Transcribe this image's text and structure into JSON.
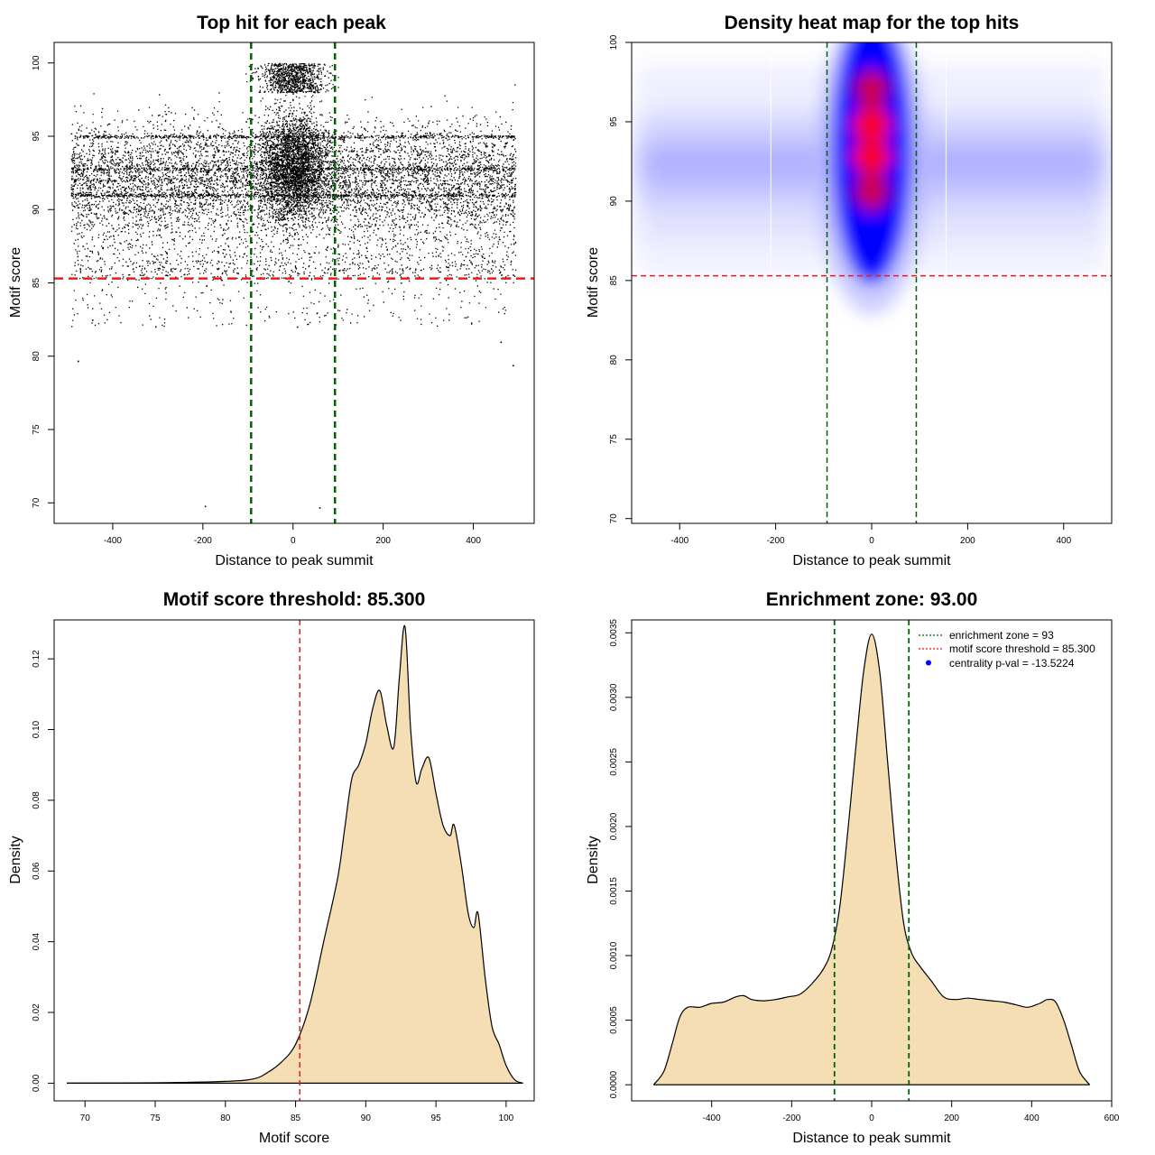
{
  "chart_data": [
    {
      "type": "scatter",
      "title": "Top hit for each peak",
      "xlabel": "Distance to peak summit",
      "ylabel": "Motif score",
      "xlim": [
        -530,
        535
      ],
      "ylim": [
        68.6,
        101.4
      ],
      "xticks": [
        -400,
        -200,
        0,
        200,
        400
      ],
      "yticks": [
        70,
        75,
        80,
        85,
        90,
        95,
        100
      ],
      "vlines": [
        -93,
        93
      ],
      "hline": 85.3,
      "point_density": {
        "x_range": [
          -493,
          493
        ],
        "score_peaks": [
          91,
          92.8,
          95
        ],
        "central_concentration_half_width": 93
      },
      "outliers": [
        {
          "x": -196,
          "y": 69.8
        },
        {
          "x": 58,
          "y": 69.7
        },
        {
          "x": -478,
          "y": 79.7
        },
        {
          "x": 487,
          "y": 79.4
        },
        {
          "x": 460,
          "y": 81.0
        }
      ]
    },
    {
      "type": "heatmap",
      "title": "Density heat map for the top hits",
      "xlabel": "Distance to peak summit",
      "ylabel": "Motif score",
      "xlim": [
        -500,
        500
      ],
      "ylim": [
        69.7,
        100
      ],
      "xticks": [
        -400,
        -200,
        0,
        200,
        400
      ],
      "yticks": [
        70,
        75,
        80,
        85,
        90,
        95,
        100
      ],
      "vlines": [
        -93,
        93
      ],
      "hline": 85.3,
      "hotspots": [
        {
          "x": 0,
          "y": 92.8,
          "level": "high"
        },
        {
          "x": 0,
          "y": 94.8,
          "level": "high"
        },
        {
          "x": 0,
          "y": 97.2,
          "level": "medium"
        },
        {
          "x": 0,
          "y": 90.5,
          "level": "medium"
        }
      ],
      "colors": [
        "#ffffff",
        "#0000ff",
        "#ff0000"
      ]
    },
    {
      "type": "area",
      "title": "Motif score threshold: 85.300",
      "xlabel": "Motif score",
      "ylabel": "Density",
      "xlim": [
        67.8,
        102.0
      ],
      "ylim": [
        -0.005,
        0.131
      ],
      "xticks": [
        70,
        75,
        80,
        85,
        90,
        95,
        100
      ],
      "yticks": [
        0.0,
        0.02,
        0.04,
        0.06,
        0.08,
        0.1,
        0.12
      ],
      "ytick_labels": [
        "0.00",
        "0.02",
        "0.04",
        "0.06",
        "0.08",
        "0.10",
        "0.12"
      ],
      "vline": 85.3,
      "x": [
        68.7,
        75,
        80,
        82,
        83,
        84,
        85,
        86,
        87,
        88,
        88.5,
        89,
        89.5,
        90,
        90.5,
        91,
        91.5,
        92,
        92.4,
        92.8,
        93.2,
        93.6,
        94,
        94.5,
        95,
        95.5,
        96,
        96.3,
        96.8,
        97.3,
        97.7,
        98,
        98.5,
        99,
        99.5,
        100,
        100.6,
        101.2
      ],
      "y": [
        0.0,
        0.0001,
        0.0005,
        0.0012,
        0.003,
        0.006,
        0.011,
        0.022,
        0.04,
        0.058,
        0.072,
        0.086,
        0.09,
        0.096,
        0.106,
        0.111,
        0.101,
        0.095,
        0.115,
        0.129,
        0.1,
        0.085,
        0.089,
        0.092,
        0.082,
        0.073,
        0.07,
        0.073,
        0.062,
        0.048,
        0.044,
        0.048,
        0.03,
        0.016,
        0.011,
        0.005,
        0.001,
        0.0
      ],
      "fill": "#f5deb3"
    },
    {
      "type": "area",
      "title": "Enrichment zone: 93.00",
      "xlabel": "Distance to peak summit",
      "ylabel": "Density",
      "xlim": [
        -600,
        600
      ],
      "ylim": [
        -0.000125,
        0.0036
      ],
      "xticks": [
        -400,
        -200,
        0,
        200,
        400,
        600
      ],
      "yticks": [
        0.0,
        0.0005,
        0.001,
        0.0015,
        0.002,
        0.0025,
        0.003,
        0.0035
      ],
      "ytick_labels": [
        "0.0000",
        "0.0005",
        "0.0010",
        "0.0015",
        "0.0020",
        "0.0025",
        "0.0030",
        "0.0035"
      ],
      "vlines": [
        -93,
        93
      ],
      "x": [
        -545,
        -520,
        -500,
        -480,
        -460,
        -430,
        -400,
        -370,
        -340,
        -320,
        -300,
        -270,
        -240,
        -210,
        -180,
        -150,
        -120,
        -100,
        -80,
        -60,
        -40,
        -20,
        0,
        20,
        40,
        60,
        80,
        100,
        120,
        150,
        180,
        210,
        240,
        270,
        300,
        330,
        360,
        390,
        420,
        440,
        460,
        480,
        500,
        520,
        545
      ],
      "y": [
        0.0,
        0.0001,
        0.0003,
        0.00052,
        0.0006,
        0.0006,
        0.00063,
        0.00064,
        0.00068,
        0.00069,
        0.00066,
        0.00065,
        0.00066,
        0.00068,
        0.0007,
        0.00078,
        0.0009,
        0.00105,
        0.00137,
        0.00195,
        0.0026,
        0.0032,
        0.00349,
        0.0032,
        0.0025,
        0.0018,
        0.00125,
        0.00102,
        0.00092,
        0.0008,
        0.00068,
        0.00066,
        0.00067,
        0.00066,
        0.00065,
        0.00064,
        0.00062,
        0.0006,
        0.00063,
        0.00066,
        0.00064,
        0.0005,
        0.0003,
        0.0001,
        0.0
      ],
      "fill": "#f5deb3",
      "legend": [
        {
          "label": "enrichment zone = 93",
          "color": "#006400",
          "symbol": "line"
        },
        {
          "label": "motif score threshold = 85.300",
          "color": "#ff0000",
          "symbol": "line"
        },
        {
          "label": "centrality p-val = -13.5224",
          "color": "#0000ff",
          "symbol": "dot"
        }
      ],
      "legend_position": "top-right"
    }
  ]
}
